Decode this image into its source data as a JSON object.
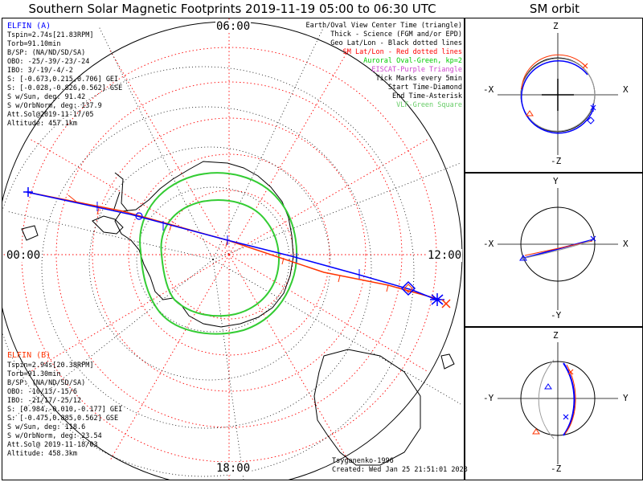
{
  "header": {
    "title": "Southern Solar Magnetic Footprints 2019-11-19 05:00 to 06:30 UTC",
    "orbit_title": "SM orbit"
  },
  "hours": {
    "top": "06:00",
    "left": "00:00",
    "right": "12:00",
    "bottom": "18:00"
  },
  "sat_a": {
    "name": "ELFIN (A)",
    "color": "#0000ff",
    "lines": [
      "Tspin=2.74s[21.83RPM]",
      "Torb=91.10min",
      "B/SP: (NA/ND/SD/SA)",
      "OBO: -25/-39/-23/-24",
      "IBO: 3/-19/-4/-2",
      "S: [-0.673,0.215,0.706] GEI",
      "S: [-0.028,-0.826,0.562] GSE",
      "S w/Sun, deg: 91.42",
      "S w/OrbNorm, deg: 137.9",
      "Att.Sol@2019-11-17/05",
      "Altitude: 457.1km"
    ]
  },
  "sat_b": {
    "name": "ELFIN (B)",
    "color": "#ff3300",
    "lines": [
      "Tspin=2.94s[20.38RPM]",
      "Torb=91.30min",
      "B/SP: (NA/ND/SD/SA)",
      "OBO: -10/13/-15/6",
      "IBO: -21/17/-25/12",
      "S: [0.984,-0.010,-0.177] GEI",
      "S: [-0.475,0.885,0.562] GSE",
      "S w/Sun, deg: 118.6",
      "S w/OrbNorm, deg: 23.54",
      "Att.Sol@ 2019-11-18/03",
      "Altitude: 458.3km"
    ]
  },
  "legend": [
    {
      "text": "Earth/Oval View Center Time (triangle)",
      "color": "#000000"
    },
    {
      "text": "Thick - Science (FGM and/or EPD)",
      "color": "#000000"
    },
    {
      "text": "Geo Lat/Lon - Black dotted lines",
      "color": "#000000"
    },
    {
      "text": "SM Lat/Lon - Red dotted lines",
      "color": "#ff0000"
    },
    {
      "text": "Auroral Oval-Green, kp=2",
      "color": "#00cc00"
    },
    {
      "text": "EISCAT-Purple Triangle",
      "color": "#cc44cc"
    },
    {
      "text": "Tick Marks every 5min",
      "color": "#000000"
    },
    {
      "text": "Start Time-Diamond",
      "color": "#000000"
    },
    {
      "text": "End Time-Asterisk",
      "color": "#000000"
    },
    {
      "text": "VLF-Green Square",
      "color": "#66cc66"
    }
  ],
  "credits": {
    "author": "Tsyganenko-1996",
    "created": "Created: Wed Jan 25 21:51:01 2023"
  },
  "orbit_panels": [
    {
      "top": "Z",
      "bottom": "-Z",
      "left": "-X",
      "right": "X"
    },
    {
      "top": "Y",
      "bottom": "-Y",
      "left": "-X",
      "right": "X"
    },
    {
      "top": "Z",
      "bottom": "-Z",
      "left": "-Y",
      "right": "Y"
    }
  ],
  "colors": {
    "sm_grid": "#ff0000",
    "geo_grid": "#000000",
    "oval": "#33cc33",
    "track_a": "#0000ff",
    "track_b": "#ff3300"
  }
}
